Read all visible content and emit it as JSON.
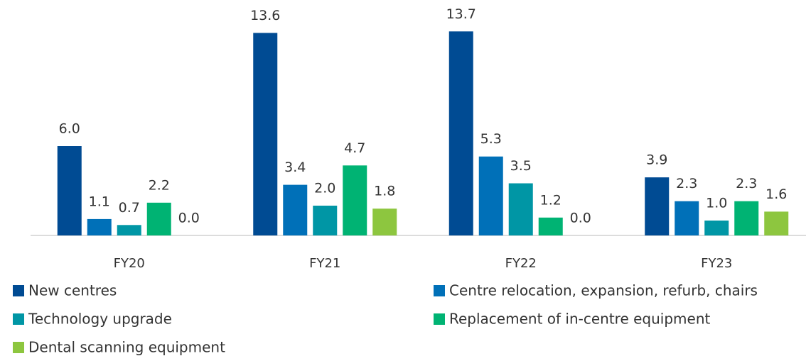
{
  "chart_data": {
    "type": "bar",
    "categories": [
      "FY20",
      "FY21",
      "FY22",
      "FY23"
    ],
    "series": [
      {
        "name": "New centres",
        "color": "#004b93",
        "values": [
          6.0,
          13.6,
          13.7,
          3.9
        ],
        "value_labels": [
          "6.0",
          "13.6",
          "13.7",
          "3.9"
        ]
      },
      {
        "name": "Centre relocation, expansion, refurb, chairs",
        "color": "#0070b8",
        "values": [
          1.1,
          3.4,
          5.3,
          2.3
        ],
        "value_labels": [
          "1.1",
          "3.4",
          "5.3",
          "2.3"
        ]
      },
      {
        "name": "Technology upgrade",
        "color": "#0096a5",
        "values": [
          0.7,
          2.0,
          3.5,
          1.0
        ],
        "value_labels": [
          "0.7",
          "2.0",
          "3.5",
          "1.0"
        ]
      },
      {
        "name": "Replacement of in-centre equipment",
        "color": "#00b373",
        "values": [
          2.2,
          4.7,
          1.2,
          2.3
        ],
        "value_labels": [
          "2.2",
          "4.7",
          "1.2",
          "2.3"
        ]
      },
      {
        "name": "Dental scanning equipment",
        "color": "#8dc63f",
        "values": [
          0.0,
          1.8,
          0.0,
          1.6
        ],
        "value_labels": [
          "0.0",
          "1.8",
          "0.0",
          "1.6"
        ]
      }
    ],
    "ylim": [
      0,
      15
    ],
    "legend": "bottom"
  }
}
